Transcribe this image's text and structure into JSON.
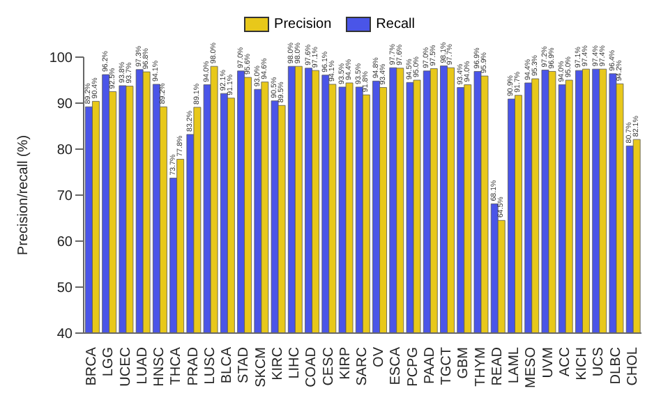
{
  "chart_data": {
    "type": "bar",
    "ylabel": "Precision/recall (%)",
    "categories": [
      "BRCA",
      "LGG",
      "UCEC",
      "LUAD",
      "HNSC",
      "THCA",
      "PRAD",
      "LUSC",
      "BLCA",
      "STAD",
      "SKCM",
      "KIRC",
      "LIHC",
      "COAD",
      "CESC",
      "KIRP",
      "SARC",
      "OV",
      "ESCA",
      "PCPG",
      "PAAD",
      "TGCT",
      "GBM",
      "THYM",
      "READ",
      "LAML",
      "MESO",
      "UVM",
      "ACC",
      "KICH",
      "UCS",
      "DLBC",
      "CHOL"
    ],
    "series": [
      {
        "name": "Precision",
        "color": "#e8c81a",
        "values": [
          90.4,
          92.5,
          93.7,
          96.8,
          89.2,
          77.8,
          89.1,
          98.0,
          91.1,
          95.6,
          94.6,
          89.5,
          98.0,
          97.1,
          94.1,
          94.4,
          91.8,
          93.4,
          97.6,
          95.0,
          97.5,
          97.7,
          94.0,
          95.9,
          64.5,
          91.7,
          95.3,
          96.9,
          95.0,
          97.4,
          97.4,
          94.2,
          82.1
        ],
        "value_labels": [
          "90.4%",
          "92.5%",
          "93.7%",
          "96.8%",
          "89.2%",
          "77.8%",
          "89.1%",
          "98.0%",
          "91.1%",
          "95.6%",
          "94.6%",
          "89.5%",
          "98.0%",
          "97.1%",
          "94.1%",
          "94.4%",
          "91.8%",
          "93.4%",
          "97.6%",
          "95.0%",
          "97.5%",
          "97.7%",
          "94.0%",
          "95.9%",
          "64.5%",
          "91.7%",
          "95.3%",
          "96.9%",
          "95.0%",
          "97.4%",
          "97.4%",
          "94.2%",
          "82.1%"
        ]
      },
      {
        "name": "Recall",
        "color": "#4a55e8",
        "values": [
          89.2,
          96.2,
          93.8,
          97.3,
          94.1,
          73.7,
          83.2,
          94.0,
          92.1,
          97.0,
          93.0,
          90.5,
          98.0,
          97.6,
          96.1,
          93.5,
          93.5,
          94.8,
          97.7,
          94.5,
          97.0,
          98.1,
          93.4,
          96.9,
          68.1,
          90.9,
          94.4,
          97.2,
          94.0,
          97.1,
          97.4,
          96.4,
          80.7
        ],
        "value_labels": [
          "89.2%",
          "96.2%",
          "93.8%",
          "97.3%",
          "94.1%",
          "73.7%",
          "83.2%",
          "94.0%",
          "92.1%",
          "97.0%",
          "93.0%",
          "90.5%",
          "98.0%",
          "97.6%",
          "96.1%",
          "93.5%",
          "93.5%",
          "94.8%",
          "97.7%",
          "94.5%",
          "97.0%",
          "98.1%",
          "93.4%",
          "96.9%",
          "68.1%",
          "90.9%",
          "94.4%",
          "97.2%",
          "94.0%",
          "97.1%",
          "97.4%",
          "96.4%",
          "80.7%"
        ]
      }
    ],
    "ylim": [
      40,
      100
    ],
    "yticks": [
      40,
      50,
      60,
      70,
      80,
      90,
      100
    ],
    "legend": "top",
    "grid": false
  }
}
